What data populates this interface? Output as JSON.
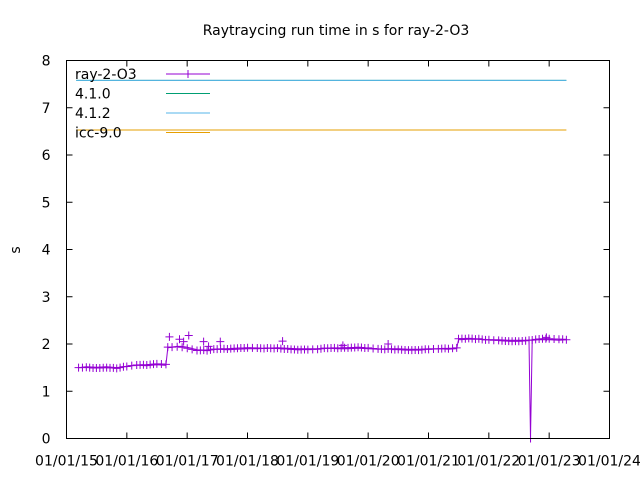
{
  "chart_data": {
    "type": "line",
    "title": "Raytraycing run time in s for ray-2-O3",
    "xlabel": "",
    "ylabel": "s",
    "ylim": [
      0,
      8
    ],
    "yticks": [
      "0",
      "1",
      "2",
      "3",
      "4",
      "5",
      "6",
      "7",
      "8"
    ],
    "xlim": [
      "2015-01-01",
      "2024-01-01"
    ],
    "xticks": [
      "01/01/15",
      "01/01/16",
      "01/01/17",
      "01/01/18",
      "01/01/19",
      "01/01/20",
      "01/01/21",
      "01/01/22",
      "01/01/23",
      "01/01/24"
    ],
    "grid": false,
    "legend_position": "top-left",
    "series": [
      {
        "name": "ray-2-O3",
        "color": "#9400d3",
        "marker": "plus",
        "points": [
          [
            "2015-03-15",
            1.5
          ],
          [
            "2015-05-01",
            1.52
          ],
          [
            "2015-07-01",
            1.51
          ],
          [
            "2015-09-01",
            1.52
          ],
          [
            "2015-11-01",
            1.5
          ],
          [
            "2016-01-01",
            1.53
          ],
          [
            "2016-03-01",
            1.55
          ],
          [
            "2016-05-01",
            1.54
          ],
          [
            "2016-07-01",
            1.56
          ],
          [
            "2016-08-25",
            1.55
          ],
          [
            "2016-09-05",
            1.92
          ],
          [
            "2016-10-01",
            1.93
          ],
          [
            "2016-11-01",
            1.95
          ],
          [
            "2016-12-01",
            1.95
          ],
          [
            "2017-01-01",
            1.93
          ],
          [
            "2017-03-01",
            1.88
          ],
          [
            "2017-05-01",
            1.87
          ],
          [
            "2017-07-01",
            1.89
          ],
          [
            "2017-09-01",
            1.88
          ],
          [
            "2017-11-01",
            1.89
          ],
          [
            "2018-01-01",
            1.9
          ],
          [
            "2018-03-01",
            1.9
          ],
          [
            "2018-05-01",
            1.91
          ],
          [
            "2018-07-01",
            1.92
          ],
          [
            "2018-09-01",
            1.91
          ],
          [
            "2018-11-01",
            1.9
          ],
          [
            "2019-01-01",
            1.9
          ],
          [
            "2019-03-01",
            1.9
          ],
          [
            "2019-05-01",
            1.91
          ],
          [
            "2019-07-01",
            1.9
          ],
          [
            "2019-09-01",
            1.9
          ],
          [
            "2019-11-01",
            1.91
          ],
          [
            "2020-01-01",
            1.9
          ],
          [
            "2020-03-01",
            1.89
          ],
          [
            "2020-05-01",
            1.9
          ],
          [
            "2020-07-01",
            1.9
          ],
          [
            "2020-09-01",
            1.89
          ],
          [
            "2020-11-01",
            1.89
          ],
          [
            "2021-01-01",
            1.9
          ],
          [
            "2021-03-01",
            1.9
          ],
          [
            "2021-05-01",
            1.89
          ],
          [
            "2021-06-20",
            1.9
          ],
          [
            "2021-07-01",
            2.09
          ],
          [
            "2021-09-01",
            2.1
          ],
          [
            "2021-11-01",
            2.1
          ],
          [
            "2022-01-01",
            2.09
          ],
          [
            "2022-03-01",
            2.09
          ],
          [
            "2022-05-01",
            2.08
          ],
          [
            "2022-07-01",
            2.08
          ],
          [
            "2022-09-01",
            2.08
          ],
          [
            "2022-09-10",
            0.0
          ],
          [
            "2022-09-20",
            2.08
          ],
          [
            "2022-11-01",
            2.09
          ],
          [
            "2023-01-01",
            2.09
          ],
          [
            "2023-03-01",
            2.08
          ],
          [
            "2023-04-15",
            2.09
          ]
        ],
        "outliers": [
          [
            "2016-09-15",
            2.15
          ],
          [
            "2016-11-15",
            2.1
          ],
          [
            "2017-01-10",
            2.18
          ],
          [
            "2016-12-10",
            2.05
          ],
          [
            "2017-04-10",
            2.05
          ],
          [
            "2017-05-10",
            1.95
          ],
          [
            "2017-07-20",
            2.05
          ],
          [
            "2018-08-01",
            2.06
          ],
          [
            "2019-08-01",
            1.97
          ],
          [
            "2020-05-01",
            2.0
          ],
          [
            "2022-12-15",
            2.14
          ]
        ]
      },
      {
        "name": "4.1.0",
        "color": "#009e73",
        "marker": "none",
        "x": [
          "2015-03-01",
          "2023-04-15"
        ],
        "value": 7.58
      },
      {
        "name": "4.1.2",
        "color": "#56b4e9",
        "marker": "none",
        "x": [
          "2015-03-01",
          "2023-04-15"
        ],
        "value": 7.58
      },
      {
        "name": "icc-9.0",
        "color": "#e69f00",
        "marker": "none",
        "x": [
          "2015-03-01",
          "2023-04-15"
        ],
        "value": 6.53
      }
    ]
  }
}
